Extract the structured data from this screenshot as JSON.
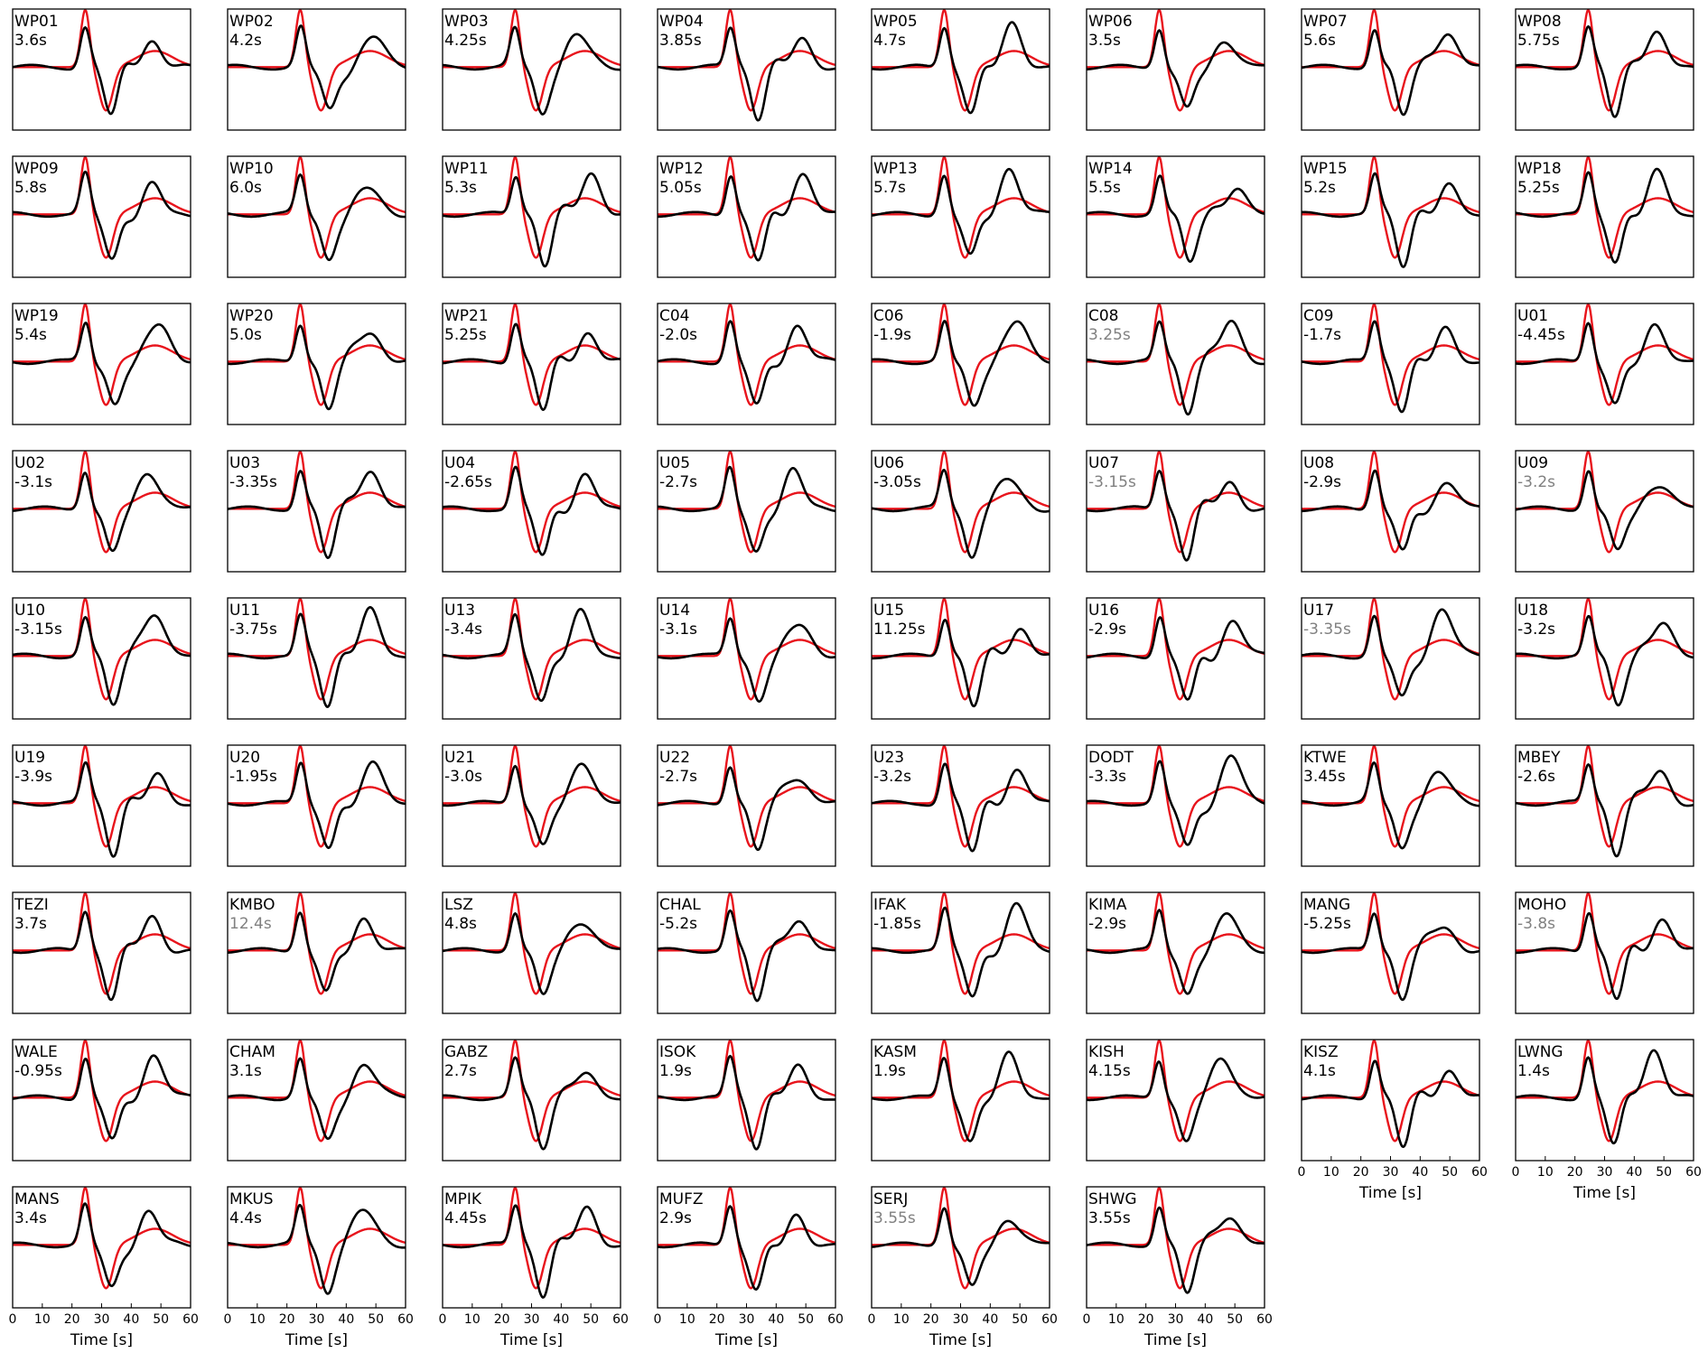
{
  "chart_data": {
    "type": "line",
    "layout": "small-multiples-grid",
    "grid_columns": 8,
    "xlabel": "Time [s]",
    "xlim": [
      0,
      60
    ],
    "xticks": [
      0,
      10,
      20,
      30,
      40,
      50,
      60
    ],
    "x_axis_shown_on": [
      "KISZ",
      "LWNG",
      "MANS",
      "MKUS",
      "MPIK",
      "MUFZ",
      "SERJ",
      "SHWG"
    ],
    "colors": {
      "synthetic": "#e8141c",
      "observed": "#000000",
      "grayed_label": "#808080"
    },
    "panels": [
      {
        "station": "WP01",
        "shift": "3.6s",
        "gray": false
      },
      {
        "station": "WP02",
        "shift": "4.2s",
        "gray": false
      },
      {
        "station": "WP03",
        "shift": "4.25s",
        "gray": false
      },
      {
        "station": "WP04",
        "shift": "3.85s",
        "gray": false
      },
      {
        "station": "WP05",
        "shift": "4.7s",
        "gray": false
      },
      {
        "station": "WP06",
        "shift": "3.5s",
        "gray": false
      },
      {
        "station": "WP07",
        "shift": "5.6s",
        "gray": false
      },
      {
        "station": "WP08",
        "shift": "5.75s",
        "gray": false
      },
      {
        "station": "WP09",
        "shift": "5.8s",
        "gray": false
      },
      {
        "station": "WP10",
        "shift": "6.0s",
        "gray": false
      },
      {
        "station": "WP11",
        "shift": "5.3s",
        "gray": false
      },
      {
        "station": "WP12",
        "shift": "5.05s",
        "gray": false
      },
      {
        "station": "WP13",
        "shift": "5.7s",
        "gray": false
      },
      {
        "station": "WP14",
        "shift": "5.5s",
        "gray": false
      },
      {
        "station": "WP15",
        "shift": "5.2s",
        "gray": false
      },
      {
        "station": "WP18",
        "shift": "5.25s",
        "gray": false
      },
      {
        "station": "WP19",
        "shift": "5.4s",
        "gray": false
      },
      {
        "station": "WP20",
        "shift": "5.0s",
        "gray": false
      },
      {
        "station": "WP21",
        "shift": "5.25s",
        "gray": false
      },
      {
        "station": "C04",
        "shift": "-2.0s",
        "gray": false
      },
      {
        "station": "C06",
        "shift": "-1.9s",
        "gray": false
      },
      {
        "station": "C08",
        "shift": "3.25s",
        "gray": true
      },
      {
        "station": "C09",
        "shift": "-1.7s",
        "gray": false
      },
      {
        "station": "U01",
        "shift": "-4.45s",
        "gray": false
      },
      {
        "station": "U02",
        "shift": "-3.1s",
        "gray": false
      },
      {
        "station": "U03",
        "shift": "-3.35s",
        "gray": false
      },
      {
        "station": "U04",
        "shift": "-2.65s",
        "gray": false
      },
      {
        "station": "U05",
        "shift": "-2.7s",
        "gray": false
      },
      {
        "station": "U06",
        "shift": "-3.05s",
        "gray": false
      },
      {
        "station": "U07",
        "shift": "-3.15s",
        "gray": true
      },
      {
        "station": "U08",
        "shift": "-2.9s",
        "gray": false
      },
      {
        "station": "U09",
        "shift": "-3.2s",
        "gray": true
      },
      {
        "station": "U10",
        "shift": "-3.15s",
        "gray": false
      },
      {
        "station": "U11",
        "shift": "-3.75s",
        "gray": false
      },
      {
        "station": "U13",
        "shift": "-3.4s",
        "gray": false
      },
      {
        "station": "U14",
        "shift": "-3.1s",
        "gray": false
      },
      {
        "station": "U15",
        "shift": "11.25s",
        "gray": false
      },
      {
        "station": "U16",
        "shift": "-2.9s",
        "gray": false
      },
      {
        "station": "U17",
        "shift": "-3.35s",
        "gray": true
      },
      {
        "station": "U18",
        "shift": "-3.2s",
        "gray": false
      },
      {
        "station": "U19",
        "shift": "-3.9s",
        "gray": false
      },
      {
        "station": "U20",
        "shift": "-1.95s",
        "gray": false
      },
      {
        "station": "U21",
        "shift": "-3.0s",
        "gray": false
      },
      {
        "station": "U22",
        "shift": "-2.7s",
        "gray": false
      },
      {
        "station": "U23",
        "shift": "-3.2s",
        "gray": false
      },
      {
        "station": "DODT",
        "shift": "-3.3s",
        "gray": false
      },
      {
        "station": "KTWE",
        "shift": "3.45s",
        "gray": false
      },
      {
        "station": "MBEY",
        "shift": "-2.6s",
        "gray": false
      },
      {
        "station": "TEZI",
        "shift": "3.7s",
        "gray": false
      },
      {
        "station": "KMBO",
        "shift": "12.4s",
        "gray": true
      },
      {
        "station": "LSZ",
        "shift": "4.8s",
        "gray": false
      },
      {
        "station": "CHAL",
        "shift": "-5.2s",
        "gray": false
      },
      {
        "station": "IFAK",
        "shift": "-1.85s",
        "gray": false
      },
      {
        "station": "KIMA",
        "shift": "-2.9s",
        "gray": false
      },
      {
        "station": "MANG",
        "shift": "-5.25s",
        "gray": false
      },
      {
        "station": "MOHO",
        "shift": "-3.8s",
        "gray": true
      },
      {
        "station": "WALE",
        "shift": "-0.95s",
        "gray": false
      },
      {
        "station": "CHAM",
        "shift": "3.1s",
        "gray": false
      },
      {
        "station": "GABZ",
        "shift": "2.7s",
        "gray": false
      },
      {
        "station": "ISOK",
        "shift": "1.9s",
        "gray": false
      },
      {
        "station": "KASM",
        "shift": "1.9s",
        "gray": false
      },
      {
        "station": "KISH",
        "shift": "4.15s",
        "gray": false
      },
      {
        "station": "KISZ",
        "shift": "4.1s",
        "gray": false
      },
      {
        "station": "LWNG",
        "shift": "1.4s",
        "gray": false
      },
      {
        "station": "MANS",
        "shift": "3.4s",
        "gray": false
      },
      {
        "station": "MKUS",
        "shift": "4.4s",
        "gray": false
      },
      {
        "station": "MPIK",
        "shift": "4.45s",
        "gray": false
      },
      {
        "station": "MUFZ",
        "shift": "2.9s",
        "gray": false
      },
      {
        "station": "SERJ",
        "shift": "3.55s",
        "gray": true
      },
      {
        "station": "SHWG",
        "shift": "3.55s",
        "gray": false
      }
    ]
  }
}
